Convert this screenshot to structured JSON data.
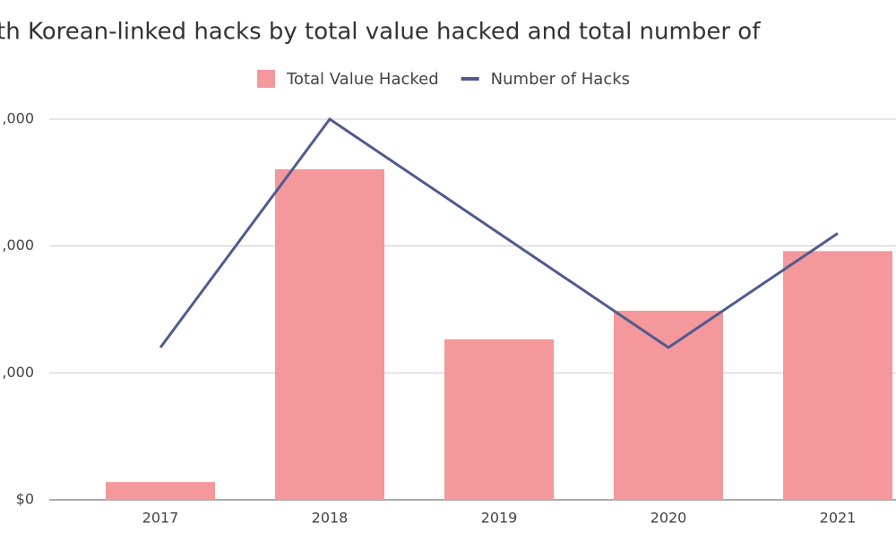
{
  "chart_data": {
    "type": "bar_line",
    "title": "th Korean-linked hacks by total value hacked and total number of",
    "categories": [
      "2017",
      "2018",
      "2019",
      "2020",
      "2021"
    ],
    "series": [
      {
        "name": "Total Value Hacked",
        "type": "bar",
        "color": "#f4989b",
        "values": [
          28000000,
          521000000,
          253000000,
          298000000,
          392000000
        ]
      },
      {
        "name": "Number of Hacks",
        "type": "line",
        "axis": "y2",
        "color": "#4f5b8f",
        "values": [
          4,
          10,
          7,
          4,
          7
        ]
      }
    ],
    "ylim": [
      0,
      600000000
    ],
    "yticks": [
      {
        "value": 0,
        "label": "$0"
      },
      {
        "value": 200000000,
        "label": ",000"
      },
      {
        "value": 400000000,
        "label": ",000"
      },
      {
        "value": 600000000,
        "label": ",000"
      }
    ],
    "y2lim": [
      0,
      10
    ],
    "grid": true,
    "legend": "top"
  }
}
